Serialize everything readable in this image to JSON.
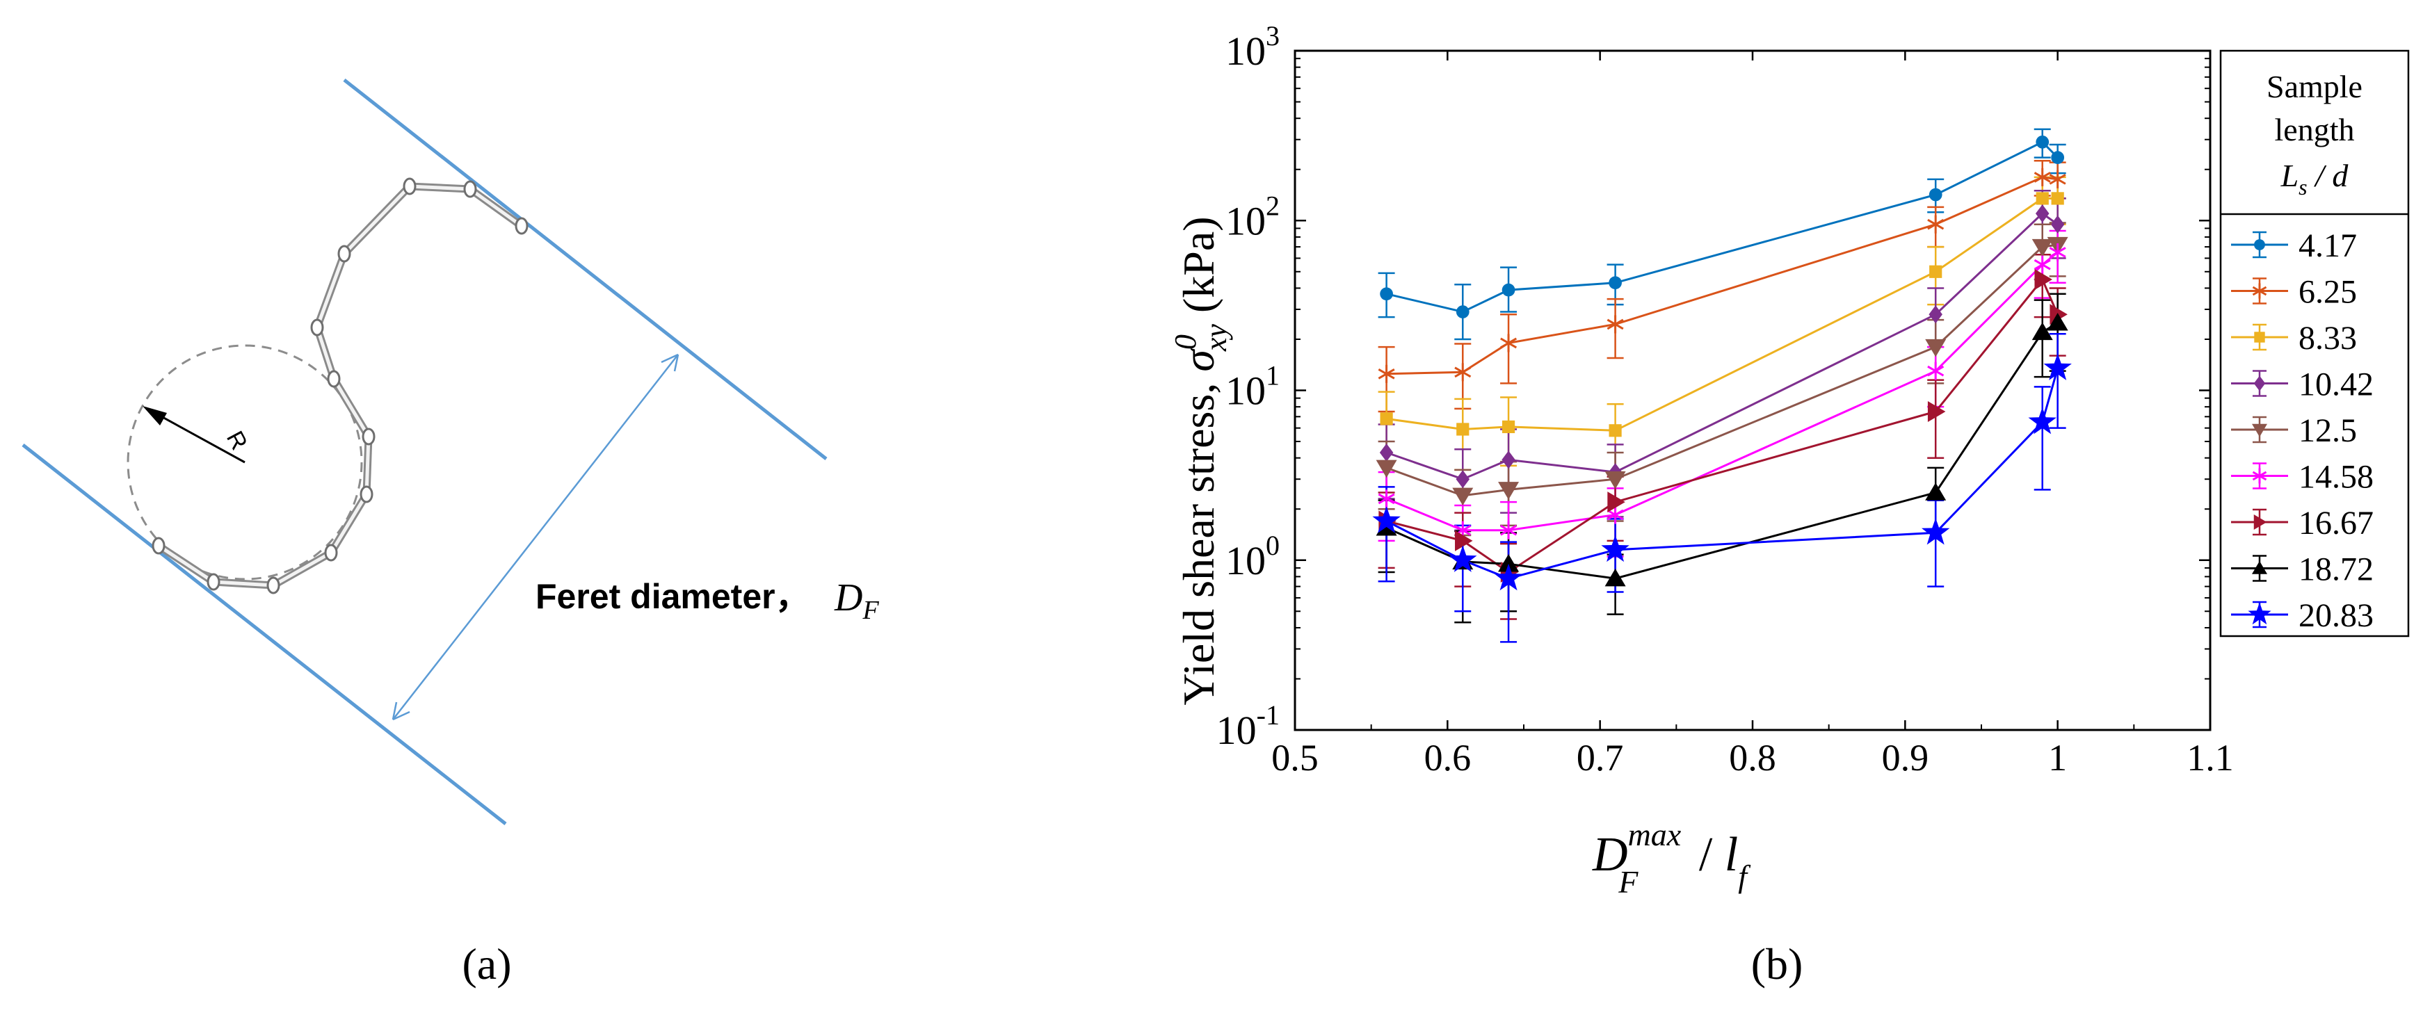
{
  "panel_a": {
    "label": "(a)",
    "radius_label": "R",
    "feret_text": "Feret diameter，",
    "feret_symbol": "D",
    "feret_subscript": "F"
  },
  "panel_b": {
    "label": "(b)"
  },
  "colors": {
    "feret_lines": "#5b9bd5",
    "axis": "#000000"
  },
  "chart_data": {
    "type": "line",
    "y_scale": "log",
    "xlim": [
      0.5,
      1.1
    ],
    "ylim": [
      0.1,
      1000
    ],
    "xticks": [
      0.5,
      0.6,
      0.7,
      0.8,
      0.9,
      1.0,
      1.1
    ],
    "xtick_labels": [
      "0.5",
      "0.6",
      "0.7",
      "0.8",
      "0.9",
      "1",
      "1.1"
    ],
    "yticks": [
      0.1,
      1,
      10,
      100,
      1000
    ],
    "ytick_bases": [
      "10",
      "10",
      "10",
      "10",
      "10"
    ],
    "ytick_exponents": [
      "-1",
      "0",
      "1",
      "2",
      "3"
    ],
    "ylabel": {
      "prefix": "Yield shear stress, ",
      "symbol": "σ",
      "sup": "0",
      "sub": "xy",
      "suffix": " (kPa)"
    },
    "xlabel": {
      "symbol": "D",
      "sup": "max",
      "sub": "F",
      "slash": " / ",
      "symbol2": "l",
      "sub2": "f"
    },
    "legend": {
      "title_line1": "Sample",
      "title_line2": "length",
      "title_symbol": "L",
      "title_sub": "s",
      "title_tail": " / d",
      "placement": "right-outside"
    },
    "grid": false,
    "x": [
      0.56,
      0.61,
      0.64,
      0.71,
      0.92,
      0.99,
      1.0
    ],
    "series": [
      {
        "name": "4.17",
        "color": "#0072bd",
        "marker": "circle",
        "values": [
          37,
          29,
          39,
          43,
          142,
          290,
          235
        ],
        "err_low": [
          10,
          9,
          10,
          11,
          30,
          55,
          45
        ],
        "err_high": [
          12,
          13,
          14,
          12,
          33,
          55,
          45
        ]
      },
      {
        "name": "6.25",
        "color": "#d95319",
        "marker": "asterisk",
        "values": [
          12.5,
          12.8,
          19,
          24.5,
          95,
          180,
          175
        ],
        "err_low": [
          5,
          5,
          8,
          9,
          25,
          40,
          40
        ],
        "err_high": [
          5.5,
          6,
          9,
          10,
          25,
          45,
          45
        ]
      },
      {
        "name": "8.33",
        "color": "#edb120",
        "marker": "square",
        "values": [
          6.8,
          5.9,
          6.1,
          5.8,
          50,
          135,
          135
        ],
        "err_low": [
          3,
          2.5,
          2.5,
          2.5,
          18,
          40,
          40
        ],
        "err_high": [
          3,
          3,
          3,
          2.5,
          20,
          45,
          45
        ]
      },
      {
        "name": "10.42",
        "color": "#7e2f8e",
        "marker": "diamond",
        "values": [
          4.3,
          3.0,
          3.9,
          3.3,
          28,
          110,
          95
        ],
        "err_low": [
          2,
          1.5,
          2,
          1.5,
          10,
          35,
          35
        ],
        "err_high": [
          2,
          1.5,
          2,
          1.5,
          12,
          40,
          40
        ]
      },
      {
        "name": "12.5",
        "color": "#8c564b",
        "marker": "triangle-down",
        "values": [
          3.5,
          2.4,
          2.6,
          3.0,
          18,
          70,
          72
        ],
        "err_low": [
          1.5,
          1,
          1,
          1.3,
          7,
          25,
          25
        ],
        "err_high": [
          1.5,
          1,
          1.2,
          1.3,
          8,
          25,
          25
        ]
      },
      {
        "name": "14.58",
        "color": "#ff00ff",
        "marker": "asterisk",
        "values": [
          2.3,
          1.5,
          1.5,
          1.85,
          13,
          55,
          65
        ],
        "err_low": [
          1,
          0.6,
          0.6,
          0.8,
          5,
          20,
          22
        ],
        "err_high": [
          1,
          0.6,
          0.7,
          0.8,
          5,
          20,
          22
        ]
      },
      {
        "name": "16.67",
        "color": "#a2142f",
        "marker": "triangle-right",
        "values": [
          1.7,
          1.3,
          0.85,
          2.2,
          7.5,
          45,
          28
        ],
        "err_low": [
          0.8,
          0.6,
          0.4,
          0.9,
          3.5,
          18,
          12
        ],
        "err_high": [
          0.8,
          0.6,
          0.4,
          0.9,
          4,
          18,
          12
        ]
      },
      {
        "name": "18.72",
        "color": "#000000",
        "marker": "triangle-up",
        "values": [
          1.55,
          0.98,
          0.95,
          0.78,
          2.5,
          22,
          25
        ],
        "err_low": [
          0.7,
          0.55,
          0.45,
          0.3,
          1,
          10,
          12
        ],
        "err_high": [
          0.7,
          0.5,
          0.5,
          0.3,
          1,
          12,
          12
        ]
      },
      {
        "name": "20.83",
        "color": "#0000ff",
        "marker": "star",
        "values": [
          1.7,
          1.0,
          0.78,
          1.15,
          1.45,
          6.5,
          13.5
        ],
        "err_low": [
          0.95,
          0.5,
          0.45,
          0.5,
          0.75,
          3.9,
          7.5
        ],
        "err_high": [
          1.0,
          0.6,
          0.5,
          0.6,
          0.8,
          4,
          8
        ]
      }
    ]
  }
}
